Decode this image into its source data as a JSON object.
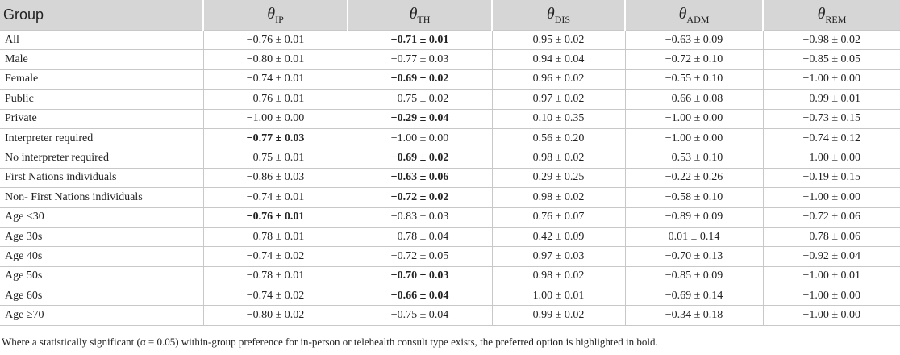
{
  "table": {
    "header": [
      "Group",
      {
        "symbol": "θ",
        "sub": "IP"
      },
      {
        "symbol": "θ",
        "sub": "TH"
      },
      {
        "symbol": "θ",
        "sub": "DIS"
      },
      {
        "symbol": "θ",
        "sub": "ADM"
      },
      {
        "symbol": "θ",
        "sub": "REM"
      }
    ],
    "rows": [
      [
        "All",
        "−0.76 ± 0.01",
        {
          "text": "−0.71 ± 0.01",
          "bold": true
        },
        "0.95 ± 0.02",
        "−0.63 ± 0.09",
        "−0.98 ± 0.02"
      ],
      [
        "Male",
        "−0.80 ± 0.01",
        "−0.77 ± 0.03",
        "0.94 ± 0.04",
        "−0.72 ± 0.10",
        "−0.85 ± 0.05"
      ],
      [
        "Female",
        "−0.74 ± 0.01",
        {
          "text": "−0.69 ± 0.02",
          "bold": true
        },
        "0.96 ± 0.02",
        "−0.55 ± 0.10",
        "−1.00 ± 0.00"
      ],
      [
        "Public",
        "−0.76 ± 0.01",
        "−0.75 ± 0.02",
        "0.97 ± 0.02",
        "−0.66 ± 0.08",
        "−0.99 ± 0.01"
      ],
      [
        "Private",
        "−1.00 ± 0.00",
        {
          "text": "−0.29 ± 0.04",
          "bold": true
        },
        "0.10 ± 0.35",
        "−1.00 ± 0.00",
        "−0.73 ± 0.15"
      ],
      [
        "Interpreter required",
        {
          "text": "−0.77 ± 0.03",
          "bold": true
        },
        "−1.00 ± 0.00",
        "0.56 ± 0.20",
        "−1.00 ± 0.00",
        "−0.74 ± 0.12"
      ],
      [
        "No interpreter required",
        "−0.75 ± 0.01",
        {
          "text": "−0.69 ± 0.02",
          "bold": true
        },
        "0.98 ± 0.02",
        "−0.53 ± 0.10",
        "−1.00 ± 0.00"
      ],
      [
        "First Nations individuals",
        "−0.86 ± 0.03",
        {
          "text": "−0.63 ± 0.06",
          "bold": true
        },
        "0.29 ± 0.25",
        "−0.22 ± 0.26",
        "−0.19 ± 0.15"
      ],
      [
        "Non- First Nations individuals",
        "−0.74 ± 0.01",
        {
          "text": "−0.72 ± 0.02",
          "bold": true
        },
        "0.98 ± 0.02",
        "−0.58 ± 0.10",
        "−1.00 ± 0.00"
      ],
      [
        "Age <30",
        {
          "text": "−0.76 ± 0.01",
          "bold": true
        },
        "−0.83 ± 0.03",
        "0.76 ± 0.07",
        "−0.89 ± 0.09",
        "−0.72 ± 0.06"
      ],
      [
        "Age 30s",
        "−0.78 ± 0.01",
        "−0.78 ± 0.04",
        "0.42 ± 0.09",
        "0.01 ± 0.14",
        "−0.78 ± 0.06"
      ],
      [
        "Age 40s",
        "−0.74 ± 0.02",
        "−0.72 ± 0.05",
        "0.97 ± 0.03",
        "−0.70 ± 0.13",
        "−0.92 ± 0.04"
      ],
      [
        "Age 50s",
        "−0.78 ± 0.01",
        {
          "text": "−0.70 ± 0.03",
          "bold": true
        },
        "0.98 ± 0.02",
        "−0.85 ± 0.09",
        "−1.00 ± 0.01"
      ],
      [
        "Age 60s",
        "−0.74 ± 0.02",
        {
          "text": "−0.66 ± 0.04",
          "bold": true
        },
        "1.00 ± 0.01",
        "−0.69 ± 0.14",
        "−1.00 ± 0.00"
      ],
      [
        "Age ≥70",
        "−0.80 ± 0.02",
        "−0.75 ± 0.04",
        "0.99 ± 0.02",
        "−0.34 ± 0.18",
        "−1.00 ± 0.00"
      ]
    ],
    "footnote": "Where a statistically significant (α = 0.05) within-group preference for in-person or telehealth consult type exists, the preferred option is highlighted in bold."
  }
}
